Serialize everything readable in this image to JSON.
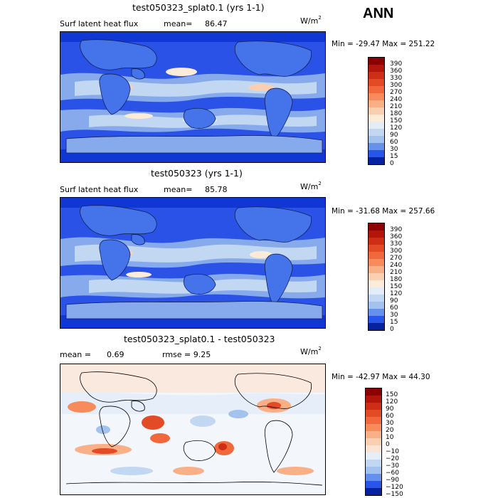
{
  "top_label": "ANN",
  "panels": [
    {
      "title": "test050323_splat0.1 (yrs 1-1)",
      "left_label": "Surf latent heat flux",
      "mean_label": "mean=",
      "mean_value": "86.47",
      "units_base": "W/m",
      "units_exp": "2",
      "minmax": "Min = -29.47 Max = 251.22",
      "colors": [
        "#8b0000",
        "#b2160b",
        "#cd2e15",
        "#e34a26",
        "#f2683d",
        "#f78b5c",
        "#fab087",
        "#fbd0b2",
        "#fcebd9",
        "#e3edf8",
        "#c2d7f2",
        "#a3c2ee",
        "#86aaeb",
        "#6590eb",
        "#4573ea",
        "#2856e8",
        "#1037d4",
        "#06229e"
      ],
      "ticks": [
        "390",
        "360",
        "330",
        "300",
        "270",
        "240",
        "210",
        "180",
        "150",
        "120",
        "90",
        "60",
        "30",
        "15",
        "0"
      ]
    },
    {
      "title": "test050323 (yrs 1-1)",
      "left_label": "Surf latent heat flux",
      "mean_label": "mean=",
      "mean_value": "85.78",
      "units_base": "W/m",
      "units_exp": "2",
      "minmax": "Min = -31.68 Max = 257.66",
      "colors": [
        "#8b0000",
        "#b2160b",
        "#cd2e15",
        "#e34a26",
        "#f2683d",
        "#f78b5c",
        "#fab087",
        "#fbd0b2",
        "#fcebd9",
        "#e3edf8",
        "#c2d7f2",
        "#a3c2ee",
        "#86aaeb",
        "#6590eb",
        "#4573ea",
        "#2856e8",
        "#1037d4",
        "#06229e"
      ],
      "ticks": [
        "390",
        "360",
        "330",
        "300",
        "270",
        "240",
        "210",
        "180",
        "150",
        "120",
        "90",
        "60",
        "30",
        "15",
        "0"
      ]
    },
    {
      "title": "test050323_splat0.1 - test050323",
      "left_label": "mean =",
      "mean_label": "0.69",
      "mean_value": "rmse =   9.25",
      "units_base": "W/m",
      "units_exp": "2",
      "minmax": "Min = -42.97 Max =  44.30",
      "colors": [
        "#8b0000",
        "#b2160b",
        "#cd2e15",
        "#e34a26",
        "#f2683d",
        "#f78b5c",
        "#fab087",
        "#fbd0b2",
        "#fce4d3",
        "#e5eef9",
        "#c2d7f2",
        "#a3c2ee",
        "#86aaeb",
        "#6590eb",
        "#4573ea",
        "#2856e8",
        "#1037d4",
        "#06229e"
      ],
      "ticks": [
        "150",
        "120",
        "90",
        "60",
        "30",
        "20",
        "10",
        "0",
        "−10",
        "−20",
        "−30",
        "−60",
        "−90",
        "−120",
        "−150"
      ]
    }
  ]
}
